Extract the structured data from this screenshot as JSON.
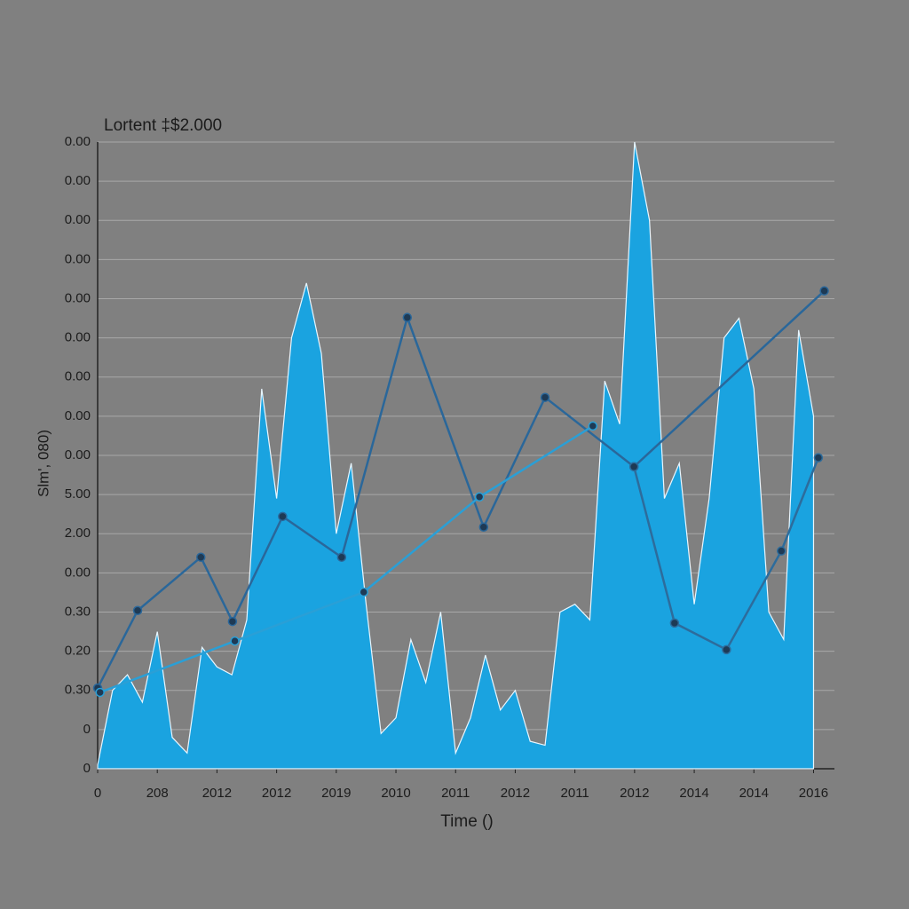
{
  "chart_data": {
    "type": "area",
    "title": "Lortent ‡$2.000",
    "y_label": "Slm', 080)",
    "x_label": "Time ()",
    "grid": true,
    "xlim": [
      0,
      12.35
    ],
    "xticks": [
      {
        "value": 0,
        "label": "0"
      },
      {
        "value": 1,
        "label": "208"
      },
      {
        "value": 2,
        "label": "2012"
      },
      {
        "value": 3,
        "label": "2012"
      },
      {
        "value": 4,
        "label": "2019"
      },
      {
        "value": 5,
        "label": "2010"
      },
      {
        "value": 6,
        "label": "2011"
      },
      {
        "value": 7,
        "label": "2012"
      },
      {
        "value": 8,
        "label": "2011"
      },
      {
        "value": 9,
        "label": "2012"
      },
      {
        "value": 10,
        "label": "2014"
      },
      {
        "value": 11,
        "label": "2014"
      },
      {
        "value": 12,
        "label": "2016"
      }
    ],
    "ylim": [
      0,
      16
    ],
    "yticks": [
      {
        "value": 0,
        "label": "0"
      },
      {
        "value": 1,
        "label": "0"
      },
      {
        "value": 2,
        "label": "0.30"
      },
      {
        "value": 3,
        "label": "0.20"
      },
      {
        "value": 4,
        "label": "0.30"
      },
      {
        "value": 5,
        "label": "0.00"
      },
      {
        "value": 6,
        "label": "2.00"
      },
      {
        "value": 7,
        "label": "5.00"
      },
      {
        "value": 8,
        "label": "0.00"
      },
      {
        "value": 9,
        "label": "0.00"
      },
      {
        "value": 10,
        "label": "0.00"
      },
      {
        "value": 11,
        "label": "0.00"
      },
      {
        "value": 12,
        "label": "0.00"
      },
      {
        "value": 13,
        "label": "0.00"
      },
      {
        "value": 14,
        "label": "0.00"
      },
      {
        "value": 15,
        "label": "0.00"
      },
      {
        "value": 16,
        "label": "0.00"
      }
    ],
    "series": [
      {
        "type": "area",
        "color": "#1aa3e0",
        "x": [
          0,
          0.25,
          0.5,
          0.75,
          1,
          1.25,
          1.5,
          1.75,
          2,
          2.25,
          2.5,
          2.75,
          3,
          3.25,
          3.5,
          3.75,
          4,
          4.25,
          4.5,
          4.75,
          5,
          5.25,
          5.5,
          5.75,
          6,
          6.25,
          6.5,
          6.75,
          7,
          7.25,
          7.5,
          7.75,
          8,
          8.25,
          8.5,
          8.75,
          9,
          9.25,
          9.5,
          9.75,
          10,
          10.25,
          10.5,
          10.75,
          11,
          11.25,
          11.5,
          11.75,
          12
        ],
        "values": [
          0.1,
          2.0,
          2.4,
          1.7,
          3.5,
          0.8,
          0.4,
          3.1,
          2.6,
          2.4,
          3.8,
          9.7,
          6.9,
          11.0,
          12.4,
          10.6,
          6.0,
          7.8,
          4.2,
          0.9,
          1.3,
          3.3,
          2.2,
          4.0,
          0.4,
          1.3,
          2.9,
          1.5,
          2.0,
          0.7,
          0.6,
          4.0,
          4.2,
          3.8,
          9.9,
          8.8,
          16.0,
          14.0,
          6.9,
          7.8,
          4.2,
          6.9,
          11.0,
          11.5,
          9.7,
          4.0,
          3.3,
          11.2,
          9.0
        ]
      },
      {
        "type": "line",
        "color": "#2a679a",
        "x": [
          0,
          0.67,
          1.73,
          2.26,
          3.1,
          4.09,
          5.19,
          6.47,
          7.5,
          8.99,
          12.18
        ],
        "values": [
          2.06,
          4.04,
          5.4,
          3.76,
          6.44,
          5.4,
          11.52,
          6.17,
          9.48,
          7.71,
          12.2
        ]
      },
      {
        "type": "line",
        "color": "#2d6c9c",
        "x": [
          8.99,
          9.67,
          10.54,
          11.46,
          12.08
        ],
        "values": [
          7.71,
          3.72,
          3.04,
          5.56,
          7.94
        ]
      },
      {
        "type": "line",
        "color": "#2a9fd6",
        "x": [
          0.04,
          2.3,
          4.46,
          6.4,
          8.3
        ],
        "values": [
          1.95,
          3.26,
          4.51,
          6.94,
          8.75
        ]
      }
    ]
  }
}
